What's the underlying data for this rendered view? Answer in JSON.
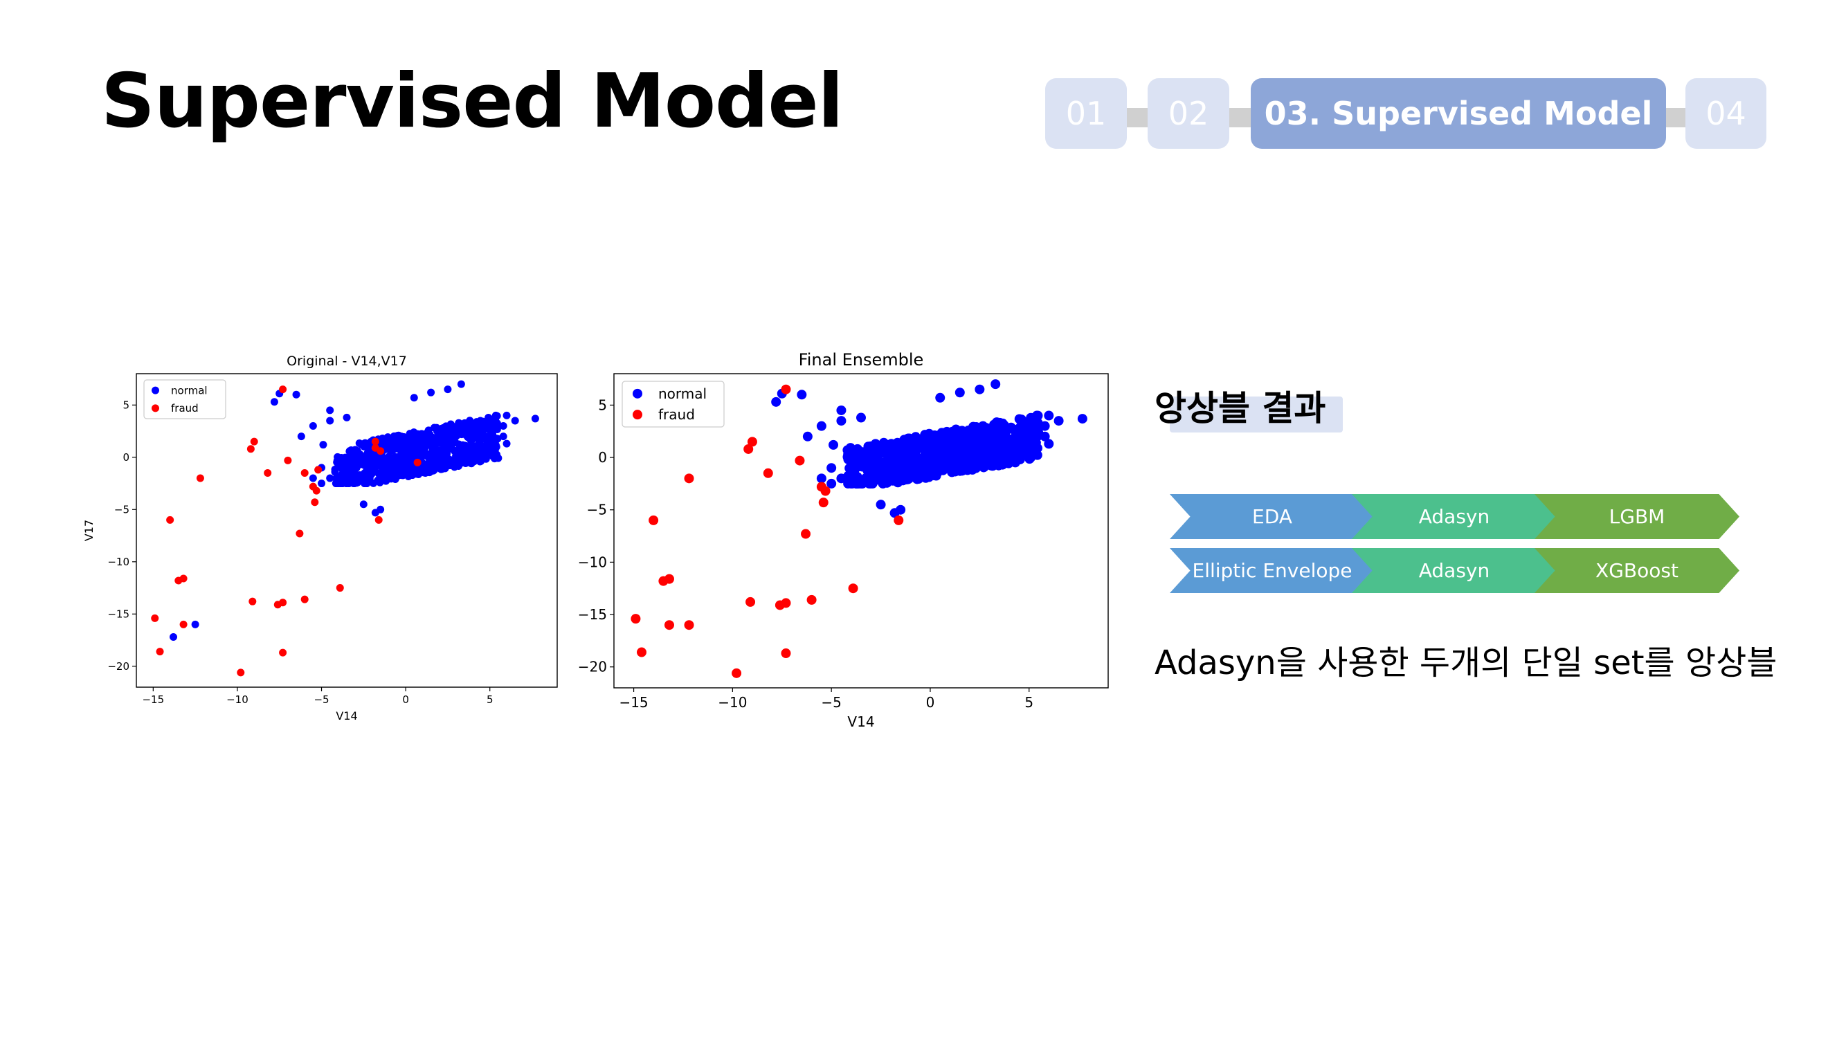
{
  "slide": {
    "title": "Supervised Model"
  },
  "nav": {
    "steps": [
      "01",
      "02",
      "03. Supervised Model",
      "04"
    ],
    "active_index": 2
  },
  "result": {
    "title": "앙상블 결과",
    "pipelines": [
      [
        "EDA",
        "Adasyn",
        "LGBM"
      ],
      [
        "Elliptic Envelope",
        "Adasyn",
        "XGBoost"
      ]
    ],
    "description": "Adasyn을 사용한 두개의 단일 set를 앙상블"
  },
  "colors": {
    "normal": "#0000ff",
    "fraud": "#ff0000",
    "nav_inactive": "#dbe2f3",
    "nav_active": "#8da6d8"
  },
  "chart_data": [
    {
      "type": "scatter",
      "title": "Original - V14,V17",
      "xlabel": "V14",
      "ylabel": "V17",
      "xlim": [
        -16,
        9
      ],
      "ylim": [
        -22,
        8
      ],
      "xticks": [
        -15,
        -10,
        -5,
        0,
        5
      ],
      "yticks": [
        5,
        0,
        -5,
        -10,
        -15,
        -20
      ],
      "grid": false,
      "legend_position": "upper-left",
      "series": [
        {
          "name": "normal",
          "color": "#0000ff",
          "cluster": {
            "x_range": [
              -4.2,
              5.5
            ],
            "y_range": [
              -2.5,
              4.0
            ],
            "count": 700
          },
          "points": [
            [
              -7.5,
              6.1
            ],
            [
              -6.5,
              6.0
            ],
            [
              -7.8,
              5.3
            ],
            [
              -4.5,
              4.5
            ],
            [
              -5.5,
              3.0
            ],
            [
              -6.2,
              2.0
            ],
            [
              -4.9,
              1.2
            ],
            [
              3.3,
              7.0
            ],
            [
              2.5,
              6.5
            ],
            [
              1.5,
              6.2
            ],
            [
              0.5,
              5.7
            ],
            [
              6.0,
              4.0
            ],
            [
              6.5,
              3.5
            ],
            [
              7.7,
              3.7
            ],
            [
              5.8,
              2.0
            ],
            [
              5.2,
              1.2
            ],
            [
              6.0,
              1.3
            ],
            [
              5.8,
              3.0
            ],
            [
              -2.5,
              -4.5
            ],
            [
              -1.8,
              -5.3
            ],
            [
              -1.5,
              -5.0
            ],
            [
              -5.5,
              -2.0
            ],
            [
              -5.0,
              -2.5
            ],
            [
              -12.5,
              -16.0
            ],
            [
              -13.8,
              -17.2
            ],
            [
              -4.5,
              3.5
            ],
            [
              -3.5,
              3.8
            ],
            [
              -5.0,
              -1.0
            ],
            [
              -4.5,
              -2.0
            ]
          ]
        },
        {
          "name": "fraud",
          "color": "#ff0000",
          "points": [
            [
              -7.3,
              6.5
            ],
            [
              -9.0,
              1.5
            ],
            [
              -9.2,
              0.8
            ],
            [
              -8.2,
              -1.5
            ],
            [
              -7.0,
              -0.3
            ],
            [
              -6.0,
              -1.5
            ],
            [
              -5.2,
              -1.2
            ],
            [
              -5.5,
              -2.8
            ],
            [
              -5.3,
              -3.2
            ],
            [
              -5.4,
              -4.3
            ],
            [
              -6.3,
              -7.3
            ],
            [
              -1.8,
              1.5
            ],
            [
              -1.8,
              0.9
            ],
            [
              -1.5,
              0.6
            ],
            [
              0.7,
              -0.5
            ],
            [
              -12.2,
              -2.0
            ],
            [
              -14.0,
              -6.0
            ],
            [
              -1.6,
              -6.0
            ],
            [
              -13.5,
              -11.8
            ],
            [
              -13.2,
              -11.6
            ],
            [
              -3.9,
              -12.5
            ],
            [
              -9.1,
              -13.8
            ],
            [
              -7.6,
              -14.1
            ],
            [
              -7.3,
              -13.9
            ],
            [
              -6.0,
              -13.6
            ],
            [
              -14.9,
              -15.4
            ],
            [
              -13.2,
              -16.0
            ],
            [
              -14.6,
              -18.6
            ],
            [
              -7.3,
              -18.7
            ],
            [
              -9.8,
              -20.6
            ]
          ]
        }
      ]
    },
    {
      "type": "scatter",
      "title": "Final Ensemble",
      "xlabel": "V14",
      "ylabel": "",
      "xlim": [
        -16,
        9
      ],
      "ylim": [
        -22,
        8
      ],
      "xticks": [
        -15,
        -10,
        -5,
        0,
        5
      ],
      "yticks": [
        5,
        0,
        -5,
        -10,
        -15,
        -20
      ],
      "grid": false,
      "legend_position": "upper-left",
      "series": [
        {
          "name": "normal",
          "color": "#0000ff",
          "cluster": {
            "x_range": [
              -4.2,
              5.5
            ],
            "y_range": [
              -2.5,
              4.0
            ],
            "count": 700
          },
          "points": [
            [
              -7.5,
              6.1
            ],
            [
              -6.5,
              6.0
            ],
            [
              -7.8,
              5.3
            ],
            [
              -4.5,
              4.5
            ],
            [
              -5.5,
              3.0
            ],
            [
              -6.2,
              2.0
            ],
            [
              -4.9,
              1.2
            ],
            [
              3.3,
              7.0
            ],
            [
              2.5,
              6.5
            ],
            [
              1.5,
              6.2
            ],
            [
              0.5,
              5.7
            ],
            [
              6.0,
              4.0
            ],
            [
              6.5,
              3.5
            ],
            [
              7.7,
              3.7
            ],
            [
              5.8,
              2.0
            ],
            [
              5.2,
              1.2
            ],
            [
              6.0,
              1.3
            ],
            [
              5.8,
              3.0
            ],
            [
              -2.5,
              -4.5
            ],
            [
              -1.8,
              -5.3
            ],
            [
              -1.5,
              -5.0
            ],
            [
              -5.5,
              -2.0
            ],
            [
              -5.0,
              -2.5
            ],
            [
              -4.5,
              3.5
            ],
            [
              -3.5,
              3.8
            ],
            [
              -5.0,
              -1.0
            ],
            [
              -4.5,
              -2.0
            ]
          ]
        },
        {
          "name": "fraud",
          "color": "#ff0000",
          "points": [
            [
              -7.3,
              6.5
            ],
            [
              -9.0,
              1.5
            ],
            [
              -9.2,
              0.8
            ],
            [
              -8.2,
              -1.5
            ],
            [
              -6.6,
              -0.3
            ],
            [
              -5.5,
              -2.8
            ],
            [
              -5.3,
              -3.2
            ],
            [
              -5.4,
              -4.3
            ],
            [
              -6.3,
              -7.3
            ],
            [
              -12.2,
              -2.0
            ],
            [
              -14.0,
              -6.0
            ],
            [
              -1.6,
              -6.0
            ],
            [
              -13.5,
              -11.8
            ],
            [
              -13.2,
              -11.6
            ],
            [
              -3.9,
              -12.5
            ],
            [
              -9.1,
              -13.8
            ],
            [
              -7.6,
              -14.1
            ],
            [
              -7.3,
              -13.9
            ],
            [
              -6.0,
              -13.6
            ],
            [
              -14.9,
              -15.4
            ],
            [
              -13.2,
              -16.0
            ],
            [
              -12.2,
              -16.0
            ],
            [
              -14.6,
              -18.6
            ],
            [
              -7.3,
              -18.7
            ],
            [
              -9.8,
              -20.6
            ]
          ]
        }
      ]
    }
  ]
}
